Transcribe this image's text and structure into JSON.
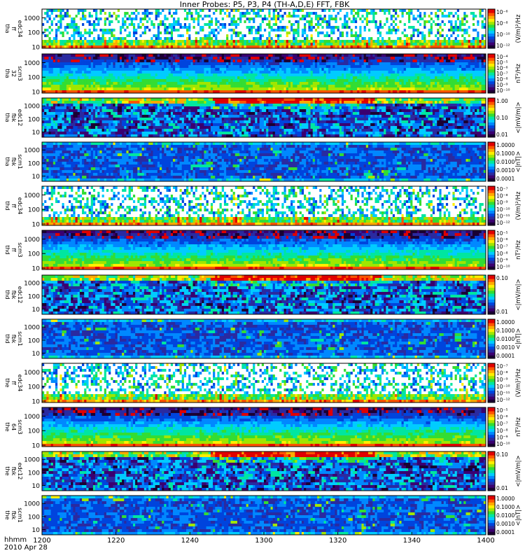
{
  "title": "Inner Probes: P5, P3, P4 (TH-A,D,E) FFT, FBK",
  "time_axis": {
    "label_line1": "hhmm",
    "label_line2": "2010 Apr 28",
    "ticks": [
      "1200",
      "1220",
      "1240",
      "1300",
      "1320",
      "1340",
      "1400"
    ]
  },
  "colors": {
    "colormap": [
      "#1a0033",
      "#3a0070",
      "#2a2aa0",
      "#0044dd",
      "#0088ff",
      "#00ccff",
      "#00e6a0",
      "#33dd33",
      "#a0e600",
      "#ffee00",
      "#ffaa00",
      "#ff5500",
      "#e00000"
    ]
  },
  "chart_data": [
    {
      "type": "heatmap",
      "ylabel": [
        "tha",
        "ff",
        "edc34"
      ],
      "yticks": [
        "1000",
        "100",
        "10"
      ],
      "ylog": true,
      "ylim": [
        8,
        4000
      ],
      "cbar_label": "(V/m)²/Hz",
      "cbar_ticks": [
        "10⁻⁶",
        "10⁻⁸",
        "10⁻¹⁰",
        "10⁻¹²"
      ],
      "style": "ffe",
      "seed": 11
    },
    {
      "type": "heatmap",
      "ylabel": [
        "tha",
        "32",
        "scm3"
      ],
      "yticks": [
        "1000",
        "100",
        "10"
      ],
      "ylog": true,
      "ylim": [
        8,
        4000
      ],
      "cbar_label": "nT²/Hz",
      "cbar_ticks": [
        "10⁻⁴",
        "10⁻⁵",
        "10⁻⁶",
        "10⁻⁷",
        "10⁻⁸",
        "10⁻⁹",
        "10⁻¹⁰"
      ],
      "style": "ffb",
      "seed": 12
    },
    {
      "type": "heatmap",
      "ylabel": [
        "tha",
        "fbk",
        "edc12"
      ],
      "yticks": [
        "1000",
        "100",
        "10"
      ],
      "ylog": true,
      "ylim": [
        4,
        4000
      ],
      "cbar_label": "<|mV/m|>",
      "cbar_ticks": [
        "1.00",
        "0.10",
        "0.01"
      ],
      "style": "fbe",
      "seed": 13
    },
    {
      "type": "heatmap",
      "ylabel": [
        "tha",
        "fbk",
        "scm1"
      ],
      "yticks": [
        "1000",
        "100",
        "10"
      ],
      "ylog": true,
      "ylim": [
        4,
        4000
      ],
      "cbar_label": "<|nT|>",
      "cbar_ticks": [
        "1.0000",
        "0.1000",
        "0.0100",
        "0.0010",
        "0.0001"
      ],
      "style": "fbb",
      "seed": 14
    },
    {
      "type": "heatmap",
      "ylabel": [
        "thd",
        "ff",
        "edc34"
      ],
      "yticks": [
        "1000",
        "100",
        "10"
      ],
      "ylog": true,
      "ylim": [
        8,
        4000
      ],
      "cbar_label": "(V/m)²/Hz",
      "cbar_ticks": [
        "10⁻⁷",
        "10⁻⁸",
        "10⁻⁹",
        "10⁻¹⁰",
        "10⁻¹¹",
        "10⁻¹²"
      ],
      "style": "ffe",
      "seed": 21
    },
    {
      "type": "heatmap",
      "ylabel": [
        "thd",
        "ff",
        "scm3"
      ],
      "yticks": [
        "1000",
        "100",
        "10"
      ],
      "ylog": true,
      "ylim": [
        8,
        4000
      ],
      "cbar_label": "nT²/Hz",
      "cbar_ticks": [
        "10⁻⁵",
        "10⁻⁶",
        "10⁻⁷",
        "10⁻⁸",
        "10⁻⁹",
        "10⁻¹⁰"
      ],
      "style": "ffb",
      "seed": 22
    },
    {
      "type": "heatmap",
      "ylabel": [
        "thd",
        "fbk",
        "edc12"
      ],
      "yticks": [
        "1000",
        "100",
        "10"
      ],
      "ylog": true,
      "ylim": [
        4,
        4000
      ],
      "cbar_label": "<|mV/m|>",
      "cbar_ticks": [
        "0.10",
        "0.01"
      ],
      "style": "fbe",
      "seed": 23
    },
    {
      "type": "heatmap",
      "ylabel": [
        "thd",
        "fbk",
        "scm1"
      ],
      "yticks": [
        "1000",
        "100",
        "10"
      ],
      "ylog": true,
      "ylim": [
        4,
        4000
      ],
      "cbar_label": "<|nT|>",
      "cbar_ticks": [
        "1.0000",
        "0.1000",
        "0.0100",
        "0.0010",
        "0.0001"
      ],
      "style": "fbb",
      "seed": 24
    },
    {
      "type": "heatmap",
      "ylabel": [
        "the",
        "ff",
        "edc34"
      ],
      "yticks": [
        "1000",
        "100",
        "10"
      ],
      "ylog": true,
      "ylim": [
        8,
        4000
      ],
      "cbar_label": "(V/m)²/Hz",
      "cbar_ticks": [
        "10⁻⁷",
        "10⁻⁸",
        "10⁻⁹",
        "10⁻¹⁰",
        "10⁻¹¹",
        "10⁻¹²"
      ],
      "style": "ffe",
      "seed": 31
    },
    {
      "type": "heatmap",
      "ylabel": [
        "the",
        "64",
        "scm3"
      ],
      "yticks": [
        "1000",
        "100",
        "10"
      ],
      "ylog": true,
      "ylim": [
        8,
        4000
      ],
      "cbar_label": "nT²/Hz",
      "cbar_ticks": [
        "10⁻⁵",
        "10⁻⁶",
        "10⁻⁷",
        "10⁻⁸",
        "10⁻⁹",
        "10⁻¹⁰"
      ],
      "style": "ffb",
      "seed": 32
    },
    {
      "type": "heatmap",
      "ylabel": [
        "the",
        "fbk",
        "edc12"
      ],
      "yticks": [
        "1000",
        "100",
        "10"
      ],
      "ylog": true,
      "ylim": [
        4,
        4000
      ],
      "cbar_label": "<|mV/m|>",
      "cbar_ticks": [
        "0.10",
        "0.01"
      ],
      "style": "fbe",
      "seed": 33
    },
    {
      "type": "heatmap",
      "ylabel": [
        "the",
        "fbk",
        "scm1"
      ],
      "yticks": [
        "1000",
        "100",
        "10"
      ],
      "ylog": true,
      "ylim": [
        4,
        4000
      ],
      "cbar_label": "<|nT|>",
      "cbar_ticks": [
        "1.0000",
        "0.1000",
        "0.0100",
        "0.0010",
        "0.0001"
      ],
      "style": "fbb",
      "seed": 34
    }
  ]
}
